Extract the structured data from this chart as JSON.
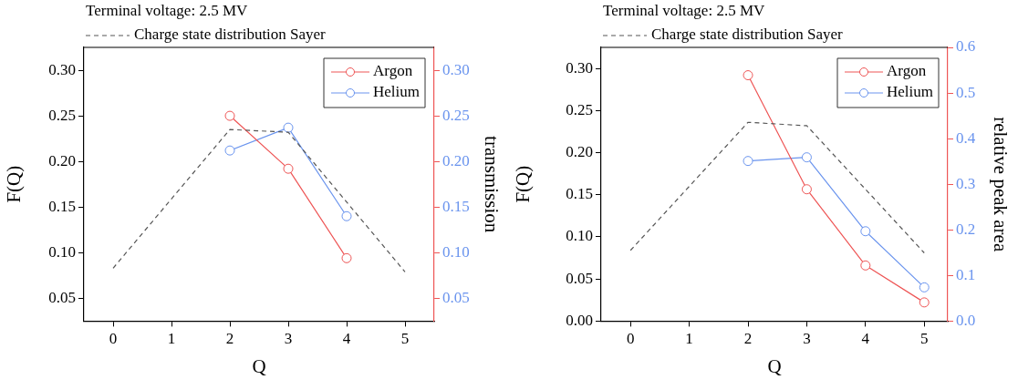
{
  "chart_data": [
    {
      "type": "line",
      "title": "Terminal voltage: 2.5 MV",
      "xlabel": "Q",
      "ylabel": "F(Q)",
      "y2label": "transmission",
      "legend": "top right",
      "xlim": [
        -0.5,
        5.5
      ],
      "xticks": [
        0,
        1,
        2,
        3,
        4,
        5
      ],
      "ylim": [
        0.025,
        0.325
      ],
      "yticks": [
        {
          "value": 0.05,
          "label": "0.05"
        },
        {
          "value": 0.1,
          "label": "0.10"
        },
        {
          "value": 0.15,
          "label": "0.15"
        },
        {
          "value": 0.2,
          "label": "0.20"
        },
        {
          "value": 0.25,
          "label": "0.25"
        },
        {
          "value": 0.3,
          "label": "0.30"
        }
      ],
      "y2lim": [
        0.025,
        0.325
      ],
      "y2ticks": [
        {
          "value": 0.05,
          "label": "0.05"
        },
        {
          "value": 0.1,
          "label": "0.10"
        },
        {
          "value": 0.15,
          "label": "0.15"
        },
        {
          "value": 0.2,
          "label": "0.20"
        },
        {
          "value": 0.25,
          "label": "0.25"
        },
        {
          "value": 0.3,
          "label": "0.30"
        }
      ],
      "series": [
        {
          "name": "Charge state distribution Sayer",
          "color": "#555555",
          "line_style": "dashed",
          "marker": "none",
          "x": [
            0,
            2,
            3,
            5
          ],
          "values": [
            0.083,
            0.235,
            0.232,
            0.079
          ]
        },
        {
          "name": "Argon",
          "color": "#ee5555",
          "marker": "circle",
          "axis": "y2",
          "x": [
            2,
            3,
            4
          ],
          "values": [
            0.25,
            0.192,
            0.094
          ]
        },
        {
          "name": "Helium",
          "color": "#6a94ee",
          "marker": "circle",
          "axis": "y2",
          "x": [
            2,
            3,
            4
          ],
          "values": [
            0.212,
            0.237,
            0.14
          ]
        }
      ]
    },
    {
      "type": "line",
      "title": "Terminal voltage: 2.5 MV",
      "xlabel": "Q",
      "ylabel": "F(Q)",
      "y2label": "relative peak area",
      "legend": "top right",
      "xlim": [
        -0.5,
        5.4
      ],
      "xticks": [
        0,
        1,
        2,
        3,
        4,
        5
      ],
      "ylim": [
        0,
        0.325
      ],
      "yticks": [
        {
          "value": 0,
          "label": "0.00"
        },
        {
          "value": 0.05,
          "label": "0.05"
        },
        {
          "value": 0.1,
          "label": "0.10"
        },
        {
          "value": 0.15,
          "label": "0.15"
        },
        {
          "value": 0.2,
          "label": "0.20"
        },
        {
          "value": 0.25,
          "label": "0.25"
        },
        {
          "value": 0.3,
          "label": "0.30"
        }
      ],
      "y2lim": [
        0,
        0.6
      ],
      "y2ticks": [
        {
          "value": 0,
          "label": "0.0"
        },
        0.1,
        0.2,
        0.3,
        0.4,
        0.5,
        0.6
      ],
      "series": [
        {
          "name": "Charge state distribution Sayer",
          "color": "#555555",
          "line_style": "dashed",
          "marker": "none",
          "x": [
            0,
            2,
            3,
            5
          ],
          "values": [
            0.084,
            0.236,
            0.232,
            0.081
          ]
        },
        {
          "name": "Argon",
          "color": "#ee5555",
          "marker": "circle",
          "axis": "y2",
          "x": [
            2,
            3,
            4,
            5
          ],
          "values": [
            0.539,
            0.289,
            0.122,
            0.041
          ]
        },
        {
          "name": "Helium",
          "color": "#6a94ee",
          "marker": "circle",
          "axis": "y2",
          "x": [
            2,
            3,
            4,
            5
          ],
          "values": [
            0.351,
            0.359,
            0.197,
            0.074
          ]
        }
      ]
    }
  ]
}
